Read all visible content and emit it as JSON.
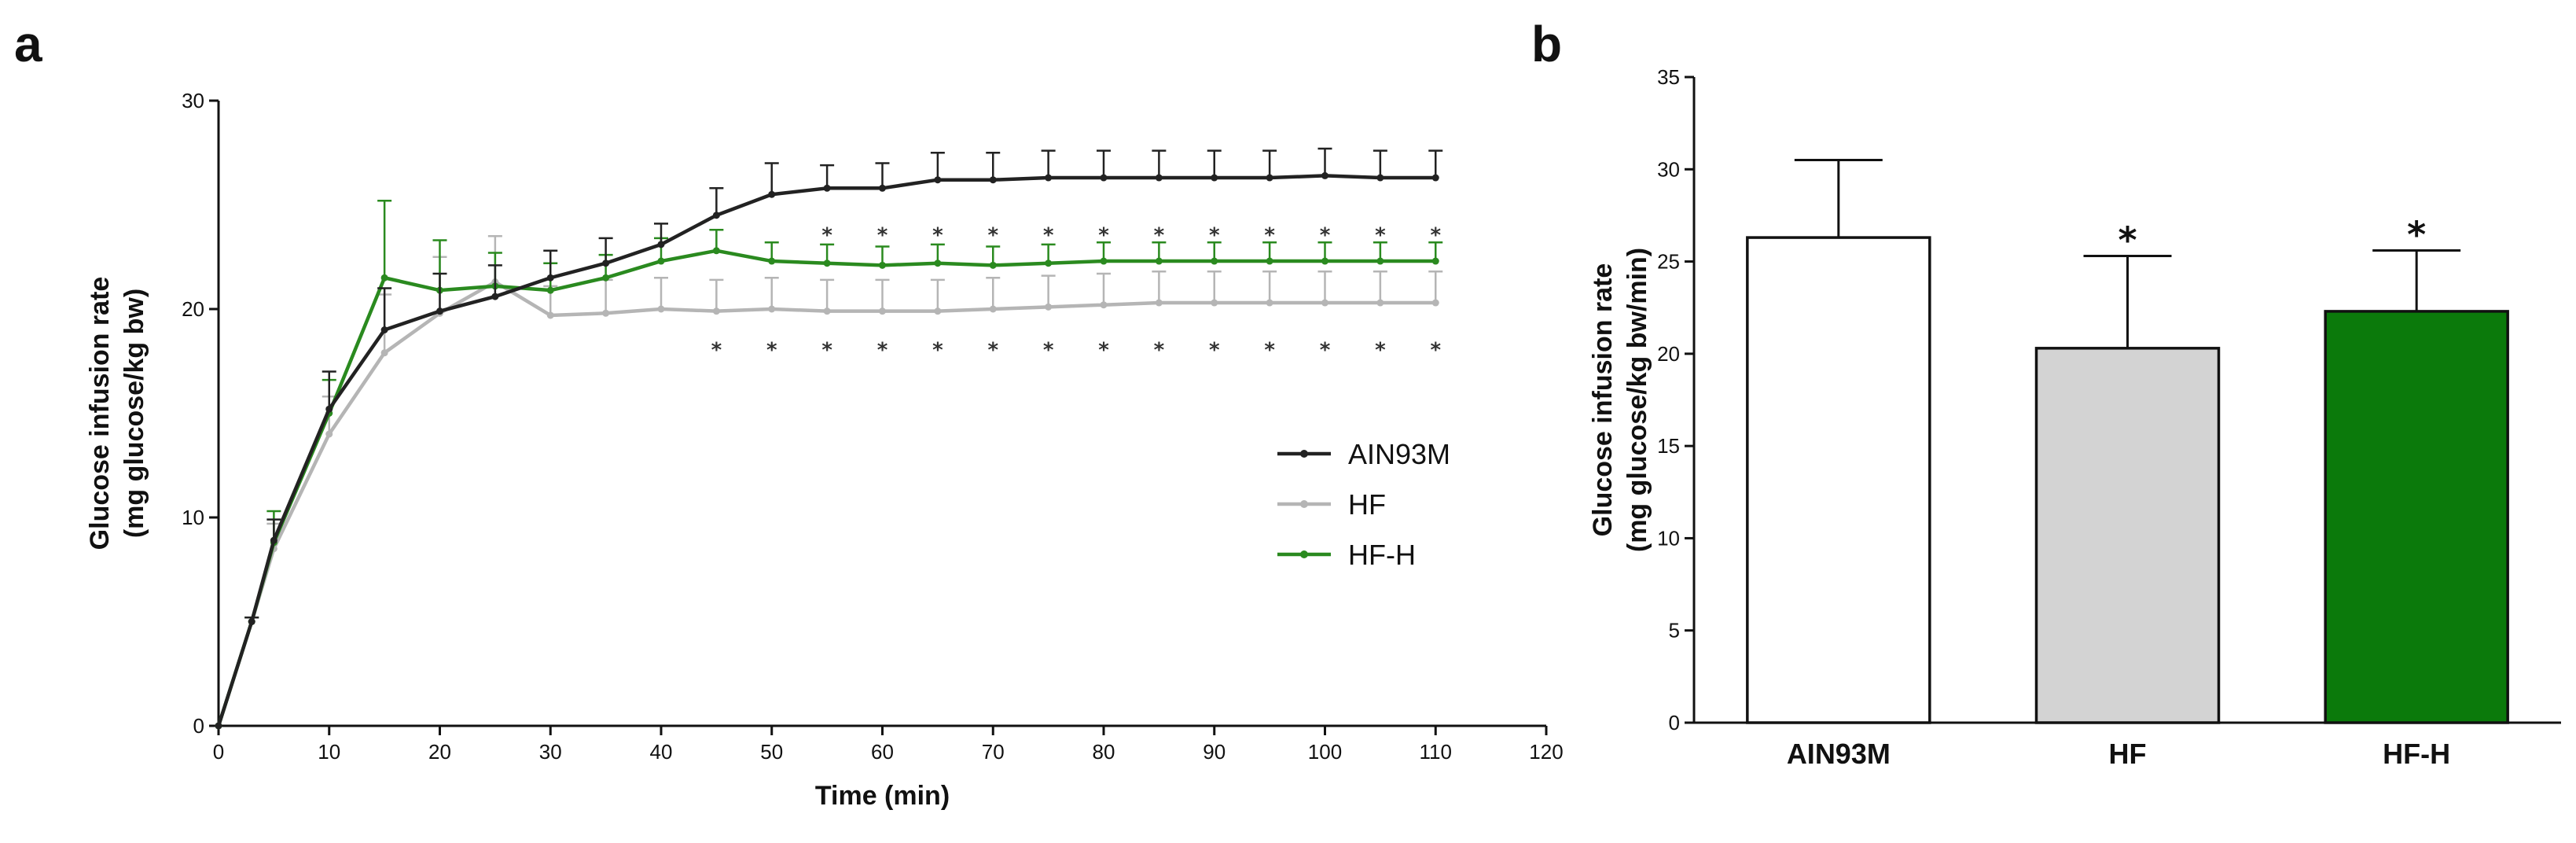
{
  "figure": {
    "panel_a_letter": "a",
    "panel_b_letter": "b"
  },
  "chart_data": [
    {
      "panel": "a",
      "type": "line",
      "title": "",
      "xlabel": "Time (min)",
      "ylabel_line1": "Glucose infusion rate",
      "ylabel_line2": "(mg glucose/kg bw)",
      "xlim": [
        0,
        120
      ],
      "ylim": [
        0,
        30
      ],
      "xticks": [
        0,
        10,
        20,
        30,
        40,
        50,
        60,
        70,
        80,
        90,
        100,
        110,
        120
      ],
      "yticks": [
        0,
        10,
        20,
        30
      ],
      "x": [
        0,
        3,
        5,
        10,
        15,
        20,
        25,
        30,
        35,
        40,
        45,
        50,
        55,
        60,
        65,
        70,
        75,
        80,
        85,
        90,
        95,
        100,
        105,
        110
      ],
      "series": [
        {
          "name": "AIN93M",
          "color": "#222222",
          "values": [
            0,
            5.0,
            8.9,
            15.2,
            19.0,
            19.9,
            20.6,
            21.5,
            22.2,
            23.1,
            24.5,
            25.5,
            25.8,
            25.8,
            26.2,
            26.2,
            26.3,
            26.3,
            26.3,
            26.3,
            26.3,
            26.4,
            26.3,
            26.3
          ],
          "errors": [
            0,
            0.2,
            1.0,
            1.8,
            2.0,
            1.8,
            1.5,
            1.3,
            1.2,
            1.0,
            1.3,
            1.5,
            1.1,
            1.2,
            1.3,
            1.3,
            1.3,
            1.3,
            1.3,
            1.3,
            1.3,
            1.3,
            1.3,
            1.3
          ]
        },
        {
          "name": "HF",
          "color": "#b5b5b5",
          "values": [
            0,
            5.0,
            8.5,
            14.0,
            17.9,
            19.8,
            21.3,
            19.7,
            19.8,
            20.0,
            19.9,
            20.0,
            19.9,
            19.9,
            19.9,
            20.0,
            20.1,
            20.2,
            20.3,
            20.3,
            20.3,
            20.3,
            20.3,
            20.3
          ],
          "errors": [
            0,
            0.2,
            1.2,
            1.8,
            2.8,
            2.7,
            2.2,
            1.4,
            1.6,
            1.5,
            1.5,
            1.5,
            1.5,
            1.5,
            1.5,
            1.5,
            1.5,
            1.5,
            1.5,
            1.5,
            1.5,
            1.5,
            1.5,
            1.5
          ]
        },
        {
          "name": "HF-H",
          "color": "#2a8a1f",
          "values": [
            0,
            5.0,
            8.8,
            15.0,
            21.5,
            20.9,
            21.1,
            20.9,
            21.5,
            22.3,
            22.8,
            22.3,
            22.2,
            22.1,
            22.2,
            22.1,
            22.2,
            22.3,
            22.3,
            22.3,
            22.3,
            22.3,
            22.3,
            22.3
          ],
          "errors": [
            0,
            0.2,
            1.5,
            1.6,
            3.7,
            2.4,
            1.6,
            1.3,
            1.1,
            1.1,
            1.0,
            0.9,
            0.9,
            0.9,
            0.9,
            0.9,
            0.9,
            0.9,
            0.9,
            0.9,
            0.9,
            0.9,
            0.9,
            0.9
          ]
        }
      ],
      "significance_top_x": [
        55,
        60,
        65,
        70,
        75,
        80,
        85,
        90,
        95,
        100,
        105,
        110
      ],
      "significance_bottom_x": [
        45,
        50,
        55,
        60,
        65,
        70,
        75,
        80,
        85,
        90,
        95,
        100,
        105,
        110
      ],
      "significance_symbol": "*",
      "legend_position": "right-middle"
    },
    {
      "panel": "b",
      "type": "bar",
      "title": "",
      "xlabel": "",
      "ylabel_line1": "Glucose infusion rate",
      "ylabel_line2": "(mg glucose/kg bw/min)",
      "ylim": [
        0,
        35
      ],
      "yticks": [
        0,
        5,
        10,
        15,
        20,
        25,
        30,
        35
      ],
      "categories": [
        "AIN93M",
        "HF",
        "HF-H"
      ],
      "values": [
        26.3,
        20.3,
        22.3
      ],
      "errors": [
        4.2,
        5.0,
        3.3
      ],
      "colors": [
        "#ffffff",
        "#d3d3d3",
        "#0b7a0b"
      ],
      "significance": [
        "",
        "*",
        "*"
      ]
    }
  ]
}
